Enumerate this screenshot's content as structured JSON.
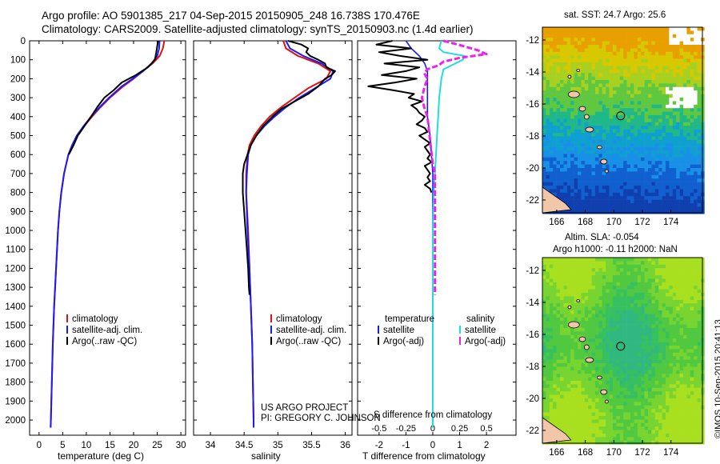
{
  "header": {
    "line1": "Argo profile: AO 5901385_217 04-Sep-2015 20150905_248 16.738S 170.476E",
    "line2": "Climatology: CARS2009. Satellite-adjusted climatology: synTS_20150903.nc (1.4d earlier)"
  },
  "colors": {
    "climatology": "#e01010",
    "satellite": "#1a1aff",
    "argo": "#000000",
    "sat_sal": "#22dddd",
    "argo_sal": "#ee22ee",
    "land": "#f2c6a8"
  },
  "credit": "©IMOS 10-Sep-2015 20:41:13",
  "project": {
    "line1": "US ARGO PROJECT",
    "line2": "PI: GREGORY C. JOHNSON"
  },
  "chart_data": [
    {
      "type": "line",
      "xlabel": "temperature (deg C)",
      "ylabel": "",
      "xlim": [
        -2,
        31
      ],
      "ylim": [
        2080,
        0
      ],
      "xticks": [
        "0",
        "5",
        "10",
        "15",
        "20",
        "25",
        "30"
      ],
      "yticks": [
        "0",
        "100",
        "200",
        "300",
        "400",
        "500",
        "600",
        "700",
        "800",
        "900",
        "1000",
        "1100",
        "1200",
        "1300",
        "1400",
        "1500",
        "1600",
        "1700",
        "1800",
        "1900",
        "2000"
      ],
      "legend": [
        "climatology",
        "satellite-adj. clim.",
        "Argo(..raw -QC)"
      ],
      "legend_position": "lower-right",
      "series": [
        {
          "name": "climatology",
          "depth": [
            0,
            40,
            80,
            120,
            160,
            200,
            240,
            300,
            350,
            400,
            450,
            500,
            550,
            600,
            700,
            800,
            900,
            1000,
            1200,
            1400,
            1600,
            1800,
            2000,
            2040
          ],
          "values": [
            26.5,
            26.2,
            25.5,
            24,
            22,
            20,
            17.8,
            15,
            13,
            11.2,
            9.5,
            8,
            7,
            6.2,
            5.3,
            4.7,
            4.3,
            4,
            3.6,
            3.2,
            2.9,
            2.7,
            2.5,
            2.45
          ]
        },
        {
          "name": "satellite-adj. clim.",
          "depth": [
            0,
            40,
            80,
            120,
            160,
            200,
            240,
            300,
            350,
            400,
            450,
            500,
            550,
            600,
            700,
            800,
            900,
            1000,
            1200,
            1400,
            1600,
            1800,
            2000,
            2040
          ],
          "values": [
            25.5,
            25.4,
            25,
            23.8,
            22,
            19.8,
            17.5,
            14.8,
            12.8,
            11,
            9.4,
            8,
            7,
            6.2,
            5.3,
            4.7,
            4.3,
            4,
            3.6,
            3.2,
            2.9,
            2.7,
            2.5,
            2.45
          ]
        },
        {
          "name": "Argo(..raw -QC)",
          "depth": [
            0,
            30,
            60,
            100,
            140,
            180,
            220,
            260,
            300,
            350,
            400,
            450,
            500,
            550,
            600
          ],
          "values": [
            25.2,
            25,
            24.8,
            24.5,
            23,
            20.5,
            17.5,
            15.8,
            13.8,
            12.3,
            11,
            9.6,
            8.2,
            7.3,
            6.3
          ]
        }
      ]
    },
    {
      "type": "line",
      "xlabel": "salinity",
      "ylabel": "",
      "xlim": [
        33.75,
        36.1
      ],
      "ylim": [
        2080,
        0
      ],
      "xticks": [
        "34",
        "34.5",
        "35",
        "35.5",
        "36"
      ],
      "legend": [
        "climatology",
        "satellite-adj. clim.",
        "Argo(..raw -QC)"
      ],
      "legend_position": "lower-right",
      "series": [
        {
          "name": "climatology",
          "depth": [
            0,
            40,
            80,
            120,
            160,
            200,
            250,
            300,
            350,
            400,
            450,
            500,
            550,
            600,
            700,
            800,
            1000,
            1200,
            1400,
            1600,
            1800,
            2000,
            2040
          ],
          "values": [
            35.08,
            35.12,
            35.3,
            35.6,
            35.78,
            35.72,
            35.45,
            35.25,
            35.05,
            34.88,
            34.75,
            34.65,
            34.58,
            34.55,
            34.53,
            34.53,
            34.56,
            34.58,
            34.6,
            34.62,
            34.63,
            34.64,
            34.64
          ]
        },
        {
          "name": "satellite-adj. clim.",
          "depth": [
            0,
            40,
            80,
            120,
            160,
            200,
            250,
            300,
            350,
            400,
            450,
            500,
            550,
            600,
            700,
            800,
            1000,
            1200,
            1400,
            1600,
            1800,
            2000,
            2040
          ],
          "values": [
            35.12,
            35.18,
            35.38,
            35.65,
            35.82,
            35.78,
            35.55,
            35.32,
            35.12,
            34.95,
            34.8,
            34.68,
            34.6,
            34.56,
            34.54,
            34.53,
            34.55,
            34.58,
            34.6,
            34.62,
            34.63,
            34.64,
            34.64
          ]
        },
        {
          "name": "Argo(..raw -QC)",
          "depth": [
            0,
            20,
            40,
            60,
            80,
            100,
            120,
            140,
            160,
            180,
            200,
            240,
            280,
            320,
            360,
            400,
            450,
            500,
            550,
            600,
            650,
            700,
            800,
            900,
            1000,
            1100,
            1200,
            1300,
            1340
          ],
          "values": [
            35.15,
            35.35,
            35.45,
            35.42,
            35.48,
            35.6,
            35.7,
            35.72,
            35.85,
            35.8,
            35.7,
            35.6,
            35.45,
            35.25,
            35.05,
            34.92,
            34.78,
            34.68,
            34.6,
            34.55,
            34.5,
            34.48,
            34.48,
            34.5,
            34.52,
            34.54,
            34.56,
            34.57,
            34.58
          ]
        }
      ]
    },
    {
      "type": "line",
      "xlabel": "T difference from climatology",
      "xlabel2": "S difference from climatology",
      "xlim": [
        -2.8,
        3.1
      ],
      "xticks": [
        "-2",
        "-1",
        "0",
        "1",
        "2"
      ],
      "xticks2": [
        "-0.5",
        "-0.25",
        "0",
        "0.25",
        "0.5"
      ],
      "legend_headers": [
        "temperature",
        "salinity"
      ],
      "legend": [
        "satellite",
        "Argo(-adj)",
        "satellite",
        "Argo(-adj)"
      ],
      "series": [
        {
          "name": "satellite",
          "quantity": "temperature",
          "depth": [
            0,
            40,
            80,
            120,
            160,
            200,
            300,
            400,
            500,
            600,
            700,
            800,
            1000,
            1500,
            2040
          ],
          "values": [
            -1.0,
            -0.8,
            -0.5,
            -0.3,
            -0.2,
            -0.2,
            -0.2,
            -0.2,
            -0.1,
            -0.05,
            0,
            0,
            0,
            0,
            0
          ]
        },
        {
          "name": "Argo(-adj)",
          "quantity": "temperature",
          "depth": [
            0,
            20,
            40,
            60,
            80,
            100,
            120,
            140,
            160,
            180,
            200,
            220,
            240,
            260,
            280,
            300,
            320,
            340,
            360,
            380,
            400,
            420,
            440,
            460,
            480,
            500,
            520,
            540,
            560,
            580,
            600,
            620,
            640,
            660,
            680,
            700,
            720,
            740,
            760,
            780,
            800
          ],
          "values": [
            -1.5,
            -2.1,
            -0.8,
            -2.0,
            -1.2,
            -0.2,
            -1.8,
            -0.5,
            -1.0,
            -1.9,
            -0.6,
            -1.4,
            -2.4,
            -1.5,
            -0.7,
            -0.9,
            -0.4,
            -0.8,
            -0.6,
            -0.5,
            -0.3,
            -0.4,
            -0.6,
            -0.3,
            -0.2,
            -0.5,
            -0.3,
            -0.1,
            -0.3,
            -0.2,
            -0.1,
            -0.2,
            -0.05,
            -0.3,
            -0.2,
            -0.1,
            -0.2,
            -0.1,
            -0.3,
            -0.1,
            -0.05
          ]
        },
        {
          "name": "satellite",
          "quantity": "salinity",
          "depth": [
            0,
            40,
            60,
            80,
            100,
            150,
            200,
            300,
            400,
            500,
            600,
            700,
            800,
            1000,
            1500,
            2040
          ],
          "values": [
            0.08,
            0.06,
            0.1,
            0.3,
            0.28,
            0.1,
            0.08,
            0.06,
            0.05,
            0.04,
            0.03,
            0.02,
            0.01,
            0.0,
            0.0,
            0.0
          ]
        },
        {
          "name": "Argo(-adj)",
          "quantity": "salinity",
          "depth": [
            0,
            30,
            50,
            70,
            90,
            110,
            130,
            150,
            170,
            200,
            250,
            300,
            350,
            400,
            450,
            500,
            550,
            600,
            650,
            700,
            800,
            900,
            1000,
            1100,
            1200,
            1300,
            1340
          ],
          "values": [
            0.1,
            0.3,
            0.42,
            0.5,
            0.25,
            0.1,
            0.05,
            -0.05,
            -0.08,
            -0.05,
            -0.08,
            -0.1,
            -0.08,
            -0.05,
            -0.04,
            -0.03,
            -0.02,
            -0.01,
            0.0,
            0.02,
            0.02,
            0.02,
            0.02,
            0.02,
            0.02,
            0.02,
            0.02
          ]
        }
      ]
    }
  ],
  "map_sst": {
    "title": "sat. SST: 24.7  Argo: 25.6",
    "xticks": [
      "166",
      "168",
      "170",
      "172",
      "174"
    ],
    "yticks": [
      "-12",
      "-14",
      "-16",
      "-18",
      "-20",
      "-22"
    ]
  },
  "map_sla": {
    "title1": "Altim. SLA: -0.054",
    "title2": "Argo h1000: -0.11 h2000: NaN",
    "xticks": [
      "166",
      "168",
      "170",
      "172",
      "174"
    ],
    "yticks": [
      "-12",
      "-14",
      "-16",
      "-18",
      "-20",
      "-22"
    ]
  }
}
